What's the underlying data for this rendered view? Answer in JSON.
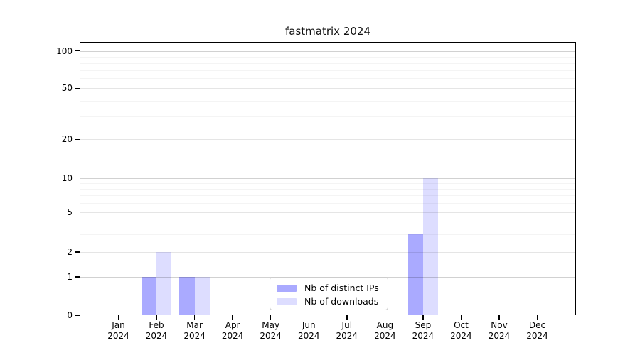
{
  "chart_data": {
    "type": "bar",
    "title": "fastmatrix 2024",
    "categories": [
      "Jan",
      "Feb",
      "Mar",
      "Apr",
      "May",
      "Jun",
      "Jul",
      "Aug",
      "Sep",
      "Oct",
      "Nov",
      "Dec"
    ],
    "category_year": "2024",
    "series": [
      {
        "name": "Nb of distinct IPs",
        "color": "#aaaaff",
        "values": [
          0,
          1,
          1,
          0,
          0,
          0,
          0,
          0,
          3,
          0,
          0,
          0
        ]
      },
      {
        "name": "Nb of downloads",
        "color": "#ddddff",
        "values": [
          0,
          2,
          1,
          0,
          0,
          0,
          0,
          0,
          10,
          0,
          0,
          0
        ]
      }
    ],
    "xlabel": "",
    "ylabel": "",
    "y_ticks": [
      0,
      1,
      2,
      5,
      10,
      20,
      50,
      100
    ],
    "y_tick_labels": [
      "0",
      "1",
      "2",
      "5",
      "10",
      "20",
      "50",
      "100"
    ],
    "y_minor_ticks": [
      3,
      4,
      6,
      7,
      8,
      9,
      30,
      40,
      60,
      70,
      80,
      90
    ],
    "y_decade_lines": [
      1,
      10,
      100
    ],
    "yscale": "log-like",
    "ylim": [
      0,
      120
    ],
    "grid": true,
    "legend_position": "inside-bottom-center",
    "frame_color": "#000000",
    "grid_color": "#cccccc",
    "background_color": "#ffffff"
  }
}
